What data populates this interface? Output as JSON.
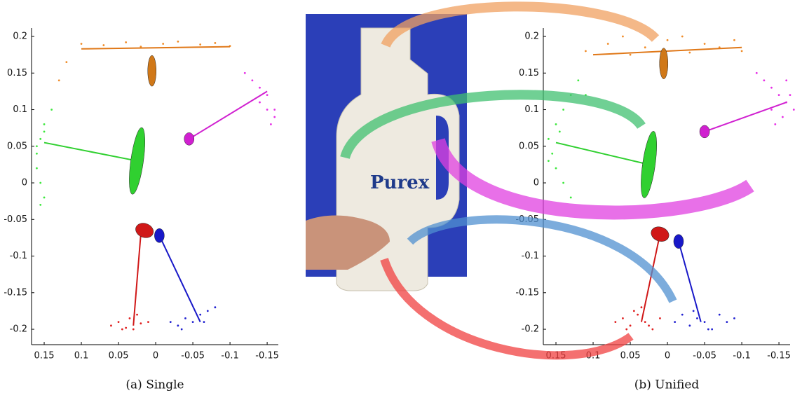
{
  "chart_data": [
    {
      "type": "scatter",
      "caption": "(a) Single",
      "xlim": [
        0.167,
        -0.165
      ],
      "ylim": [
        -0.221,
        0.2115
      ],
      "xticks": [
        0.15,
        0.1,
        0.05,
        0,
        -0.05,
        -0.1,
        -0.15
      ],
      "yticks": [
        -0.2,
        -0.15,
        -0.1,
        -0.05,
        0,
        0.05,
        0.1,
        0.15,
        0.2
      ],
      "series": [
        {
          "color": "#f08c28",
          "x": [
            0.1,
            0.07,
            0.04,
            0.02,
            -0.01,
            -0.03,
            -0.06,
            -0.08,
            -0.1,
            0.12,
            0.13
          ],
          "values": [
            0.19,
            0.188,
            0.192,
            0.186,
            0.19,
            0.193,
            0.189,
            0.191,
            0.187,
            0.165,
            0.14
          ]
        },
        {
          "color": "#3ee83e",
          "x": [
            0.14,
            0.15,
            0.155,
            0.16,
            0.16,
            0.155,
            0.15,
            0.155,
            0.16,
            0.15
          ],
          "values": [
            0.1,
            0.08,
            0.06,
            0.04,
            0.02,
            0,
            -0.02,
            -0.03,
            0.05,
            0.07
          ]
        },
        {
          "color": "#e62ee6",
          "x": [
            -0.12,
            -0.13,
            -0.14,
            -0.15,
            -0.15,
            -0.16,
            -0.155,
            -0.14,
            -0.16
          ],
          "values": [
            0.15,
            0.14,
            0.13,
            0.12,
            0.1,
            0.09,
            0.08,
            0.11,
            0.1
          ]
        },
        {
          "color": "#e02020",
          "x": [
            0.06,
            0.05,
            0.04,
            0.035,
            0.03,
            0.02,
            0.01,
            0.045,
            0.025
          ],
          "values": [
            -0.195,
            -0.19,
            -0.198,
            -0.185,
            -0.2,
            -0.192,
            -0.19,
            -0.2,
            -0.18
          ]
        },
        {
          "color": "#2020d0",
          "x": [
            -0.02,
            -0.03,
            -0.04,
            -0.05,
            -0.06,
            -0.07,
            -0.08,
            -0.035,
            -0.065
          ],
          "values": [
            -0.19,
            -0.195,
            -0.185,
            -0.19,
            -0.18,
            -0.175,
            -0.17,
            -0.2,
            -0.19
          ]
        }
      ],
      "ellipses": [
        {
          "color": "#d07818",
          "x": 0.005,
          "y": 0.153
        },
        {
          "color": "#30d030",
          "x": 0.025,
          "y": 0.03
        },
        {
          "color": "#d020d0",
          "x": -0.045,
          "y": 0.06
        },
        {
          "color": "#d01818",
          "x": 0.015,
          "y": -0.065
        },
        {
          "color": "#1818c8",
          "x": -0.005,
          "y": -0.072
        }
      ],
      "segments": [
        {
          "color": "#e07818",
          "x": [
            0.1,
            -0.1
          ],
          "values": [
            0.183,
            0.186
          ]
        },
        {
          "color": "#30d030",
          "x": [
            0.025,
            0.15
          ],
          "values": [
            0.03,
            0.055
          ]
        },
        {
          "color": "#d020d0",
          "x": [
            -0.045,
            -0.15
          ],
          "values": [
            0.06,
            0.125
          ]
        },
        {
          "color": "#d01818",
          "x": [
            0.02,
            0.03
          ],
          "values": [
            -0.07,
            -0.195
          ]
        },
        {
          "color": "#1818c8",
          "x": [
            -0.005,
            -0.06
          ],
          "values": [
            -0.072,
            -0.19
          ]
        }
      ]
    },
    {
      "type": "scatter",
      "caption": "(b) Unified",
      "xlim": [
        0.167,
        -0.165
      ],
      "ylim": [
        -0.221,
        0.2115
      ],
      "xticks": [
        0.15,
        0.1,
        0.05,
        0,
        -0.05,
        -0.1,
        -0.15
      ],
      "yticks": [
        -0.2,
        -0.15,
        -0.1,
        -0.05,
        0,
        0.05,
        0.1,
        0.15,
        0.2
      ],
      "series": [
        {
          "color": "#f08c28",
          "x": [
            0.11,
            0.08,
            0.06,
            0.03,
            0.0,
            -0.02,
            -0.05,
            -0.07,
            -0.09,
            -0.1,
            0.05,
            -0.03
          ],
          "values": [
            0.18,
            0.19,
            0.2,
            0.185,
            0.195,
            0.2,
            0.19,
            0.185,
            0.195,
            0.18,
            0.175,
            0.178
          ]
        },
        {
          "color": "#3ee83e",
          "x": [
            0.12,
            0.13,
            0.14,
            0.15,
            0.16,
            0.155,
            0.15,
            0.14,
            0.13,
            0.16,
            0.145,
            0.11
          ],
          "values": [
            0.14,
            0.12,
            0.1,
            0.08,
            0.06,
            0.04,
            0.02,
            0.0,
            -0.02,
            0.03,
            0.07,
            0.12
          ]
        },
        {
          "color": "#e62ee6",
          "x": [
            -0.12,
            -0.13,
            -0.14,
            -0.15,
            -0.16,
            -0.17,
            -0.155,
            -0.145,
            -0.165,
            -0.14,
            -0.16
          ],
          "values": [
            0.15,
            0.14,
            0.13,
            0.12,
            0.11,
            0.1,
            0.09,
            0.08,
            0.12,
            0.1,
            0.14
          ]
        },
        {
          "color": "#e02020",
          "x": [
            0.07,
            0.06,
            0.05,
            0.04,
            0.03,
            0.02,
            0.01,
            0.045,
            0.025,
            0.055,
            0.035
          ],
          "values": [
            -0.19,
            -0.185,
            -0.195,
            -0.18,
            -0.19,
            -0.2,
            -0.185,
            -0.175,
            -0.195,
            -0.2,
            -0.17
          ]
        },
        {
          "color": "#2020d0",
          "x": [
            -0.01,
            -0.02,
            -0.03,
            -0.04,
            -0.05,
            -0.06,
            -0.07,
            -0.08,
            -0.09,
            -0.035,
            -0.055
          ],
          "values": [
            -0.19,
            -0.18,
            -0.195,
            -0.185,
            -0.19,
            -0.2,
            -0.18,
            -0.19,
            -0.185,
            -0.175,
            -0.2
          ]
        }
      ],
      "ellipses": [
        {
          "color": "#d07818",
          "x": 0.005,
          "y": 0.163
        },
        {
          "color": "#30d030",
          "x": 0.025,
          "y": 0.025
        },
        {
          "color": "#d020d0",
          "x": -0.05,
          "y": 0.07
        },
        {
          "color": "#d01818",
          "x": 0.01,
          "y": -0.07
        },
        {
          "color": "#1818c8",
          "x": -0.015,
          "y": -0.08
        }
      ],
      "segments": [
        {
          "color": "#e07818",
          "x": [
            0.1,
            -0.1
          ],
          "values": [
            0.175,
            0.185
          ]
        },
        {
          "color": "#30d030",
          "x": [
            0.025,
            0.15
          ],
          "values": [
            0.025,
            0.055
          ]
        },
        {
          "color": "#d020d0",
          "x": [
            -0.05,
            -0.16
          ],
          "values": [
            0.07,
            0.11
          ]
        },
        {
          "color": "#d01818",
          "x": [
            0.01,
            0.035
          ],
          "values": [
            -0.07,
            -0.19
          ]
        },
        {
          "color": "#1818c8",
          "x": [
            -0.015,
            -0.045
          ],
          "values": [
            -0.08,
            -0.19
          ]
        }
      ]
    }
  ]
}
